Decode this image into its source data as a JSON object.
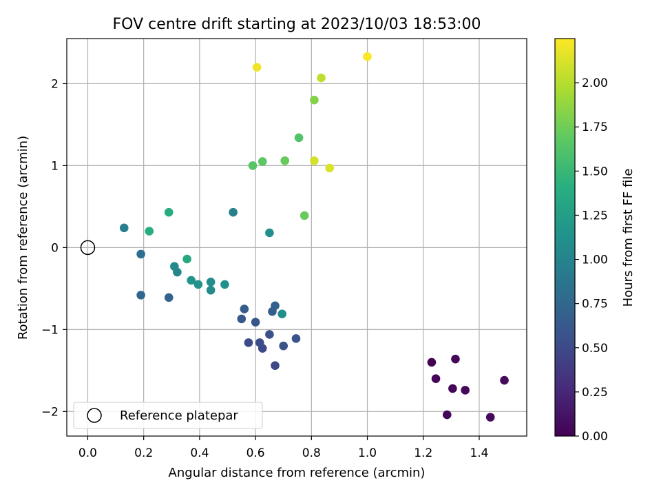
{
  "chart_data": {
    "type": "scatter",
    "title": "FOV centre drift starting at 2023/10/03 18:53:00",
    "xlabel": "Angular distance from reference (arcmin)",
    "ylabel": "Rotation from reference (arcmin)",
    "xlim": [
      -0.075,
      1.57
    ],
    "ylim": [
      -2.3,
      2.55
    ],
    "xticks": [
      0.0,
      0.2,
      0.4,
      0.6,
      0.8,
      1.0,
      1.2,
      1.4
    ],
    "xtick_labels": [
      "0.0",
      "0.2",
      "0.4",
      "0.6",
      "0.8",
      "1.0",
      "1.2",
      "1.4"
    ],
    "yticks": [
      -2,
      -1,
      0,
      1,
      2
    ],
    "ytick_labels": [
      "−2",
      "−1",
      "0",
      "1",
      "2"
    ],
    "grid": true,
    "colormap": "viridis",
    "colorbar": {
      "label": "Hours from first FF file",
      "range": [
        0.0,
        2.25
      ],
      "ticks": [
        0.0,
        0.25,
        0.5,
        0.75,
        1.0,
        1.25,
        1.5,
        1.75,
        2.0
      ],
      "tick_labels": [
        "0.00",
        "0.25",
        "0.50",
        "0.75",
        "1.00",
        "1.25",
        "1.50",
        "1.75",
        "2.00"
      ]
    },
    "reference_point": {
      "x": 0.0,
      "y": 0.0
    },
    "legend": {
      "label": "Reference platepar",
      "placement": "lower-left"
    },
    "points": [
      {
        "x": 1.23,
        "y": -1.4,
        "c": 0.0
      },
      {
        "x": 1.245,
        "y": -1.6,
        "c": 0.02
      },
      {
        "x": 1.285,
        "y": -2.04,
        "c": 0.03
      },
      {
        "x": 1.305,
        "y": -1.72,
        "c": 0.03
      },
      {
        "x": 1.315,
        "y": -1.36,
        "c": 0.04
      },
      {
        "x": 1.35,
        "y": -1.74,
        "c": 0.05
      },
      {
        "x": 1.44,
        "y": -2.07,
        "c": 0.06
      },
      {
        "x": 1.49,
        "y": -1.62,
        "c": 0.07
      },
      {
        "x": 0.67,
        "y": -1.44,
        "c": 0.48
      },
      {
        "x": 0.625,
        "y": -1.23,
        "c": 0.5
      },
      {
        "x": 0.575,
        "y": -1.16,
        "c": 0.52
      },
      {
        "x": 0.615,
        "y": -1.16,
        "c": 0.53
      },
      {
        "x": 0.65,
        "y": -1.06,
        "c": 0.55
      },
      {
        "x": 0.7,
        "y": -1.2,
        "c": 0.56
      },
      {
        "x": 0.745,
        "y": -1.11,
        "c": 0.58
      },
      {
        "x": 0.6,
        "y": -0.91,
        "c": 0.6
      },
      {
        "x": 0.55,
        "y": -0.87,
        "c": 0.62
      },
      {
        "x": 0.56,
        "y": -0.75,
        "c": 0.65
      },
      {
        "x": 0.66,
        "y": -0.78,
        "c": 0.67
      },
      {
        "x": 0.67,
        "y": -0.71,
        "c": 0.69
      },
      {
        "x": 0.29,
        "y": -0.61,
        "c": 0.72
      },
      {
        "x": 0.19,
        "y": -0.58,
        "c": 0.76
      },
      {
        "x": 0.19,
        "y": -0.08,
        "c": 0.82
      },
      {
        "x": 0.13,
        "y": 0.24,
        "c": 0.95
      },
      {
        "x": 0.52,
        "y": 0.43,
        "c": 0.98
      },
      {
        "x": 0.32,
        "y": -0.3,
        "c": 1.02
      },
      {
        "x": 0.31,
        "y": -0.23,
        "c": 1.04
      },
      {
        "x": 0.44,
        "y": -0.52,
        "c": 1.06
      },
      {
        "x": 0.44,
        "y": -0.42,
        "c": 1.08
      },
      {
        "x": 0.695,
        "y": -0.81,
        "c": 1.1
      },
      {
        "x": 0.65,
        "y": 0.18,
        "c": 1.11
      },
      {
        "x": 0.49,
        "y": -0.45,
        "c": 1.12
      },
      {
        "x": 0.395,
        "y": -0.45,
        "c": 1.13
      },
      {
        "x": 0.37,
        "y": -0.4,
        "c": 1.16
      },
      {
        "x": 0.355,
        "y": -0.14,
        "c": 1.35
      },
      {
        "x": 0.29,
        "y": 0.43,
        "c": 1.38
      },
      {
        "x": 0.22,
        "y": 0.2,
        "c": 1.4
      },
      {
        "x": 0.755,
        "y": 1.34,
        "c": 1.62
      },
      {
        "x": 0.59,
        "y": 1.0,
        "c": 1.65
      },
      {
        "x": 0.625,
        "y": 1.05,
        "c": 1.68
      },
      {
        "x": 0.705,
        "y": 1.06,
        "c": 1.72
      },
      {
        "x": 0.775,
        "y": 0.39,
        "c": 1.72
      },
      {
        "x": 0.81,
        "y": 1.8,
        "c": 1.82
      },
      {
        "x": 0.835,
        "y": 2.07,
        "c": 2.03
      },
      {
        "x": 0.81,
        "y": 1.06,
        "c": 2.1
      },
      {
        "x": 0.865,
        "y": 0.97,
        "c": 2.13
      },
      {
        "x": 0.605,
        "y": 2.2,
        "c": 2.2
      },
      {
        "x": 1.0,
        "y": 2.33,
        "c": 2.24
      }
    ]
  }
}
